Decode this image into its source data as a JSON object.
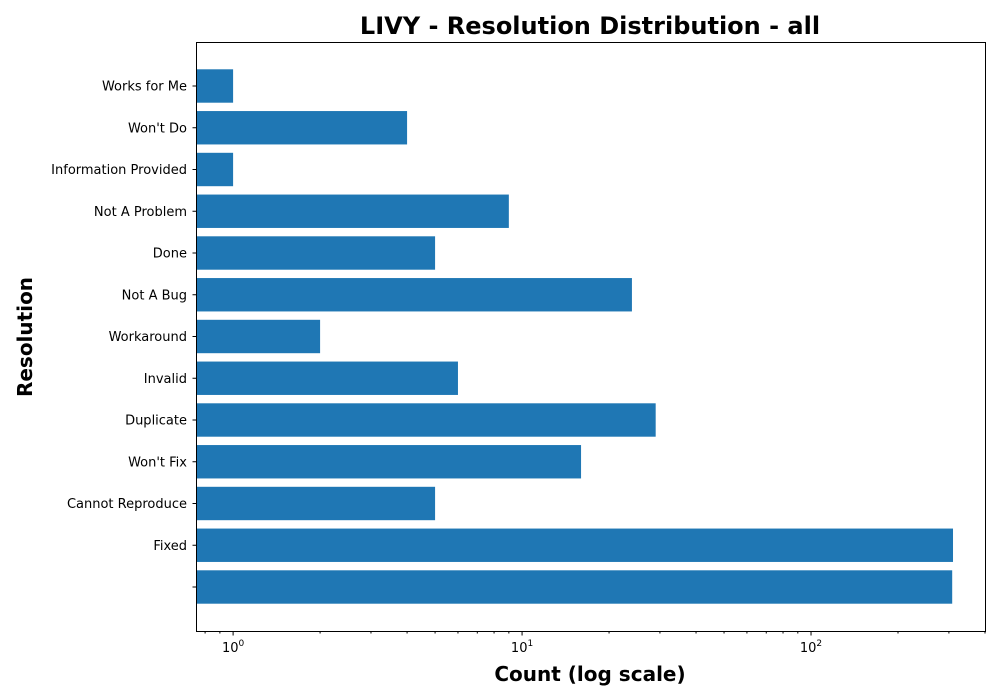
{
  "chart_data": {
    "type": "bar",
    "orientation": "horizontal",
    "title": "LIVY - Resolution Distribution - all",
    "xlabel": "Count (log scale)",
    "ylabel": "Resolution",
    "x_scale": "log",
    "xlim": [
      0.75,
      400
    ],
    "x_ticks": [
      {
        "value": 1,
        "base": "10",
        "exp": "0"
      },
      {
        "value": 10,
        "base": "10",
        "exp": "1"
      },
      {
        "value": 100,
        "base": "10",
        "exp": "2"
      }
    ],
    "grid": false,
    "bar_color": "#1f77b4",
    "categories": [
      "Works for Me",
      "Won't Do",
      "Information Provided",
      "Not A Problem",
      "Done",
      "Not A Bug",
      "Workaround",
      "Invalid",
      "Duplicate",
      "Won't Fix",
      "Cannot Reproduce",
      "Fixed",
      ""
    ],
    "values": [
      1,
      4,
      1,
      9,
      5,
      24,
      2,
      6,
      29,
      16,
      5,
      310,
      308
    ]
  }
}
